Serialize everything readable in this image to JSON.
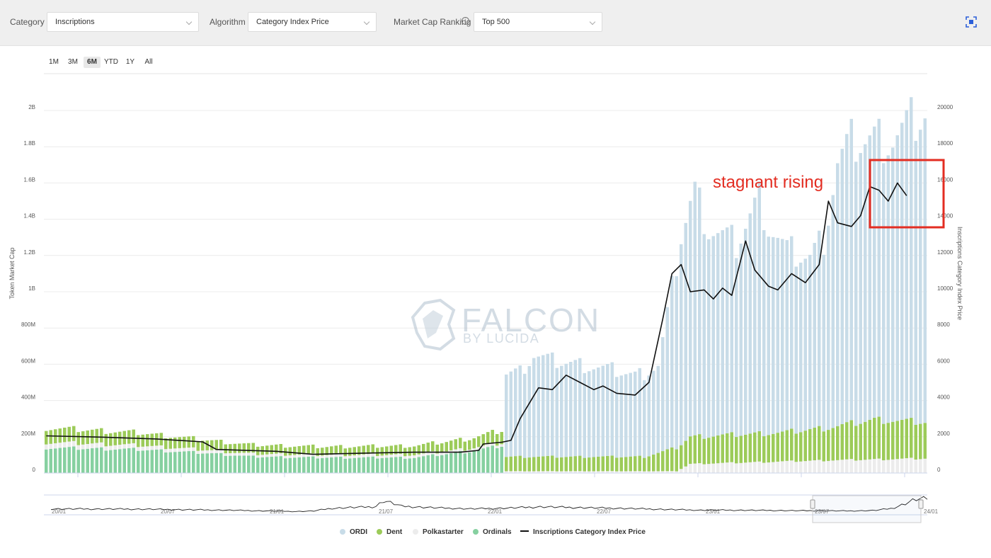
{
  "filters": {
    "category_label": "Category",
    "category_value": "Inscriptions",
    "algorithm_label": "Algorithm",
    "algorithm_value": "Category Index Price",
    "ranking_label": "Market Cap Ranking",
    "ranking_value": "Top 500",
    "info_glyph": "i"
  },
  "range_buttons": [
    {
      "label": "1M",
      "active": false
    },
    {
      "label": "3M",
      "active": false
    },
    {
      "label": "6M",
      "active": true
    },
    {
      "label": "YTD",
      "active": false
    },
    {
      "label": "1Y",
      "active": false
    },
    {
      "label": "All",
      "active": false
    }
  ],
  "watermark": {
    "main": "FALCON",
    "sub": "BY LUCIDA"
  },
  "annotation": {
    "text": "stagnant rising",
    "color": "#e32d22"
  },
  "colors": {
    "ordi": "#c8dce8",
    "dent": "#9ccb59",
    "polkastarter": "#ececec",
    "ordinals": "#86d0a0",
    "index_line": "#111111",
    "highlight_box": "#e32d22"
  },
  "legend": [
    "ORDI",
    "Dent",
    "Polkastarter",
    "Ordinals",
    "Inscriptions Category Index Price"
  ],
  "chart_data": {
    "type": "bar",
    "stacked": true,
    "ylabel": "Token Market Cap",
    "y2label": "Inscriptions Category Index Price",
    "ylim": [
      0,
      2000000000
    ],
    "y2lim": [
      0,
      20000
    ],
    "y_ticks": [
      "0",
      "200M",
      "400M",
      "600M",
      "800M",
      "1B",
      "1.2B",
      "1.4B",
      "1.6B",
      "1.8B",
      "2B"
    ],
    "y2_ticks": [
      "0",
      "2000",
      "4000",
      "6000",
      "8000",
      "10000",
      "12000",
      "14000",
      "16000",
      "18000",
      "20000"
    ],
    "navigator_ticks": [
      "20/01",
      "20/07",
      "21/01",
      "21/07",
      "22/01",
      "22/07",
      "23/01",
      "23/07",
      "24/01"
    ],
    "grid": true,
    "legend_position": "bottom-center",
    "series": [
      {
        "name": "ORDI",
        "type": "bar",
        "points": [
          [
            0,
            0
          ],
          [
            40,
            0
          ],
          [
            80,
            0
          ],
          [
            99,
            0
          ],
          [
            100,
            460000000
          ],
          [
            103,
            470000000
          ],
          [
            106,
            560000000
          ],
          [
            110,
            530000000
          ],
          [
            113,
            520000000
          ],
          [
            118,
            500000000
          ],
          [
            123,
            480000000
          ],
          [
            128,
            450000000
          ],
          [
            133,
            480000000
          ],
          [
            138,
            1150000000
          ],
          [
            141,
            1350000000
          ],
          [
            144,
            1150000000
          ],
          [
            150,
            1050000000
          ],
          [
            155,
            1300000000
          ],
          [
            157,
            1150000000
          ],
          [
            161,
            1000000000
          ],
          [
            166,
            950000000
          ],
          [
            169,
            1050000000
          ],
          [
            172,
            1450000000
          ],
          [
            175,
            1550000000
          ],
          [
            180,
            1550000000
          ],
          [
            184,
            1550000000
          ],
          [
            188,
            1650000000
          ],
          [
            191,
            1700000000
          ]
        ]
      },
      {
        "name": "Dent",
        "type": "bar",
        "points": [
          [
            0,
            80000000
          ],
          [
            20,
            70000000
          ],
          [
            35,
            55000000
          ],
          [
            45,
            50000000
          ],
          [
            60,
            45000000
          ],
          [
            80,
            50000000
          ],
          [
            92,
            55000000
          ],
          [
            99,
            70000000
          ],
          [
            100,
            80000000
          ],
          [
            130,
            80000000
          ],
          [
            140,
            150000000
          ],
          [
            160,
            160000000
          ],
          [
            170,
            180000000
          ],
          [
            180,
            220000000
          ],
          [
            191,
            200000000
          ]
        ]
      },
      {
        "name": "Polkastarter",
        "type": "bar",
        "points": [
          [
            0,
            30000000
          ],
          [
            40,
            15000000
          ],
          [
            80,
            15000000
          ],
          [
            99,
            15000000
          ],
          [
            100,
            10000000
          ],
          [
            137,
            10000000
          ],
          [
            140,
            50000000
          ],
          [
            170,
            70000000
          ],
          [
            191,
            80000000
          ]
        ]
      },
      {
        "name": "Ordinals",
        "type": "bar",
        "points": [
          [
            0,
            140000000
          ],
          [
            20,
            130000000
          ],
          [
            35,
            110000000
          ],
          [
            45,
            90000000
          ],
          [
            60,
            85000000
          ],
          [
            80,
            85000000
          ],
          [
            92,
            120000000
          ],
          [
            99,
            150000000
          ],
          [
            100,
            0
          ],
          [
            191,
            0
          ]
        ]
      },
      {
        "name": "Inscriptions Category Index Price",
        "type": "line",
        "points": [
          [
            0,
            2050
          ],
          [
            12,
            1980
          ],
          [
            24,
            1880
          ],
          [
            34,
            1720
          ],
          [
            37,
            1300
          ],
          [
            50,
            1200
          ],
          [
            58,
            1030
          ],
          [
            70,
            1100
          ],
          [
            80,
            1150
          ],
          [
            90,
            1150
          ],
          [
            94,
            1250
          ],
          [
            95,
            1600
          ],
          [
            99,
            1700
          ],
          [
            101,
            1800
          ],
          [
            103,
            3000
          ],
          [
            107,
            4700
          ],
          [
            110,
            4600
          ],
          [
            113,
            5400
          ],
          [
            116,
            5000
          ],
          [
            119,
            4600
          ],
          [
            121,
            4800
          ],
          [
            124,
            4400
          ],
          [
            128,
            4300
          ],
          [
            131,
            5000
          ],
          [
            134,
            8500
          ],
          [
            136,
            11000
          ],
          [
            138,
            11500
          ],
          [
            140,
            10000
          ],
          [
            143,
            10100
          ],
          [
            145,
            9600
          ],
          [
            147,
            10200
          ],
          [
            149,
            9800
          ],
          [
            152,
            12800
          ],
          [
            154,
            11200
          ],
          [
            157,
            10300
          ],
          [
            159,
            10100
          ],
          [
            162,
            11000
          ],
          [
            165,
            10500
          ],
          [
            168,
            11500
          ],
          [
            170,
            15000
          ],
          [
            172,
            13800
          ],
          [
            175,
            13600
          ],
          [
            177,
            14200
          ],
          [
            179,
            15800
          ],
          [
            181,
            15600
          ],
          [
            183,
            15000
          ],
          [
            185,
            16000
          ],
          [
            187,
            15300
          ]
        ]
      }
    ]
  }
}
